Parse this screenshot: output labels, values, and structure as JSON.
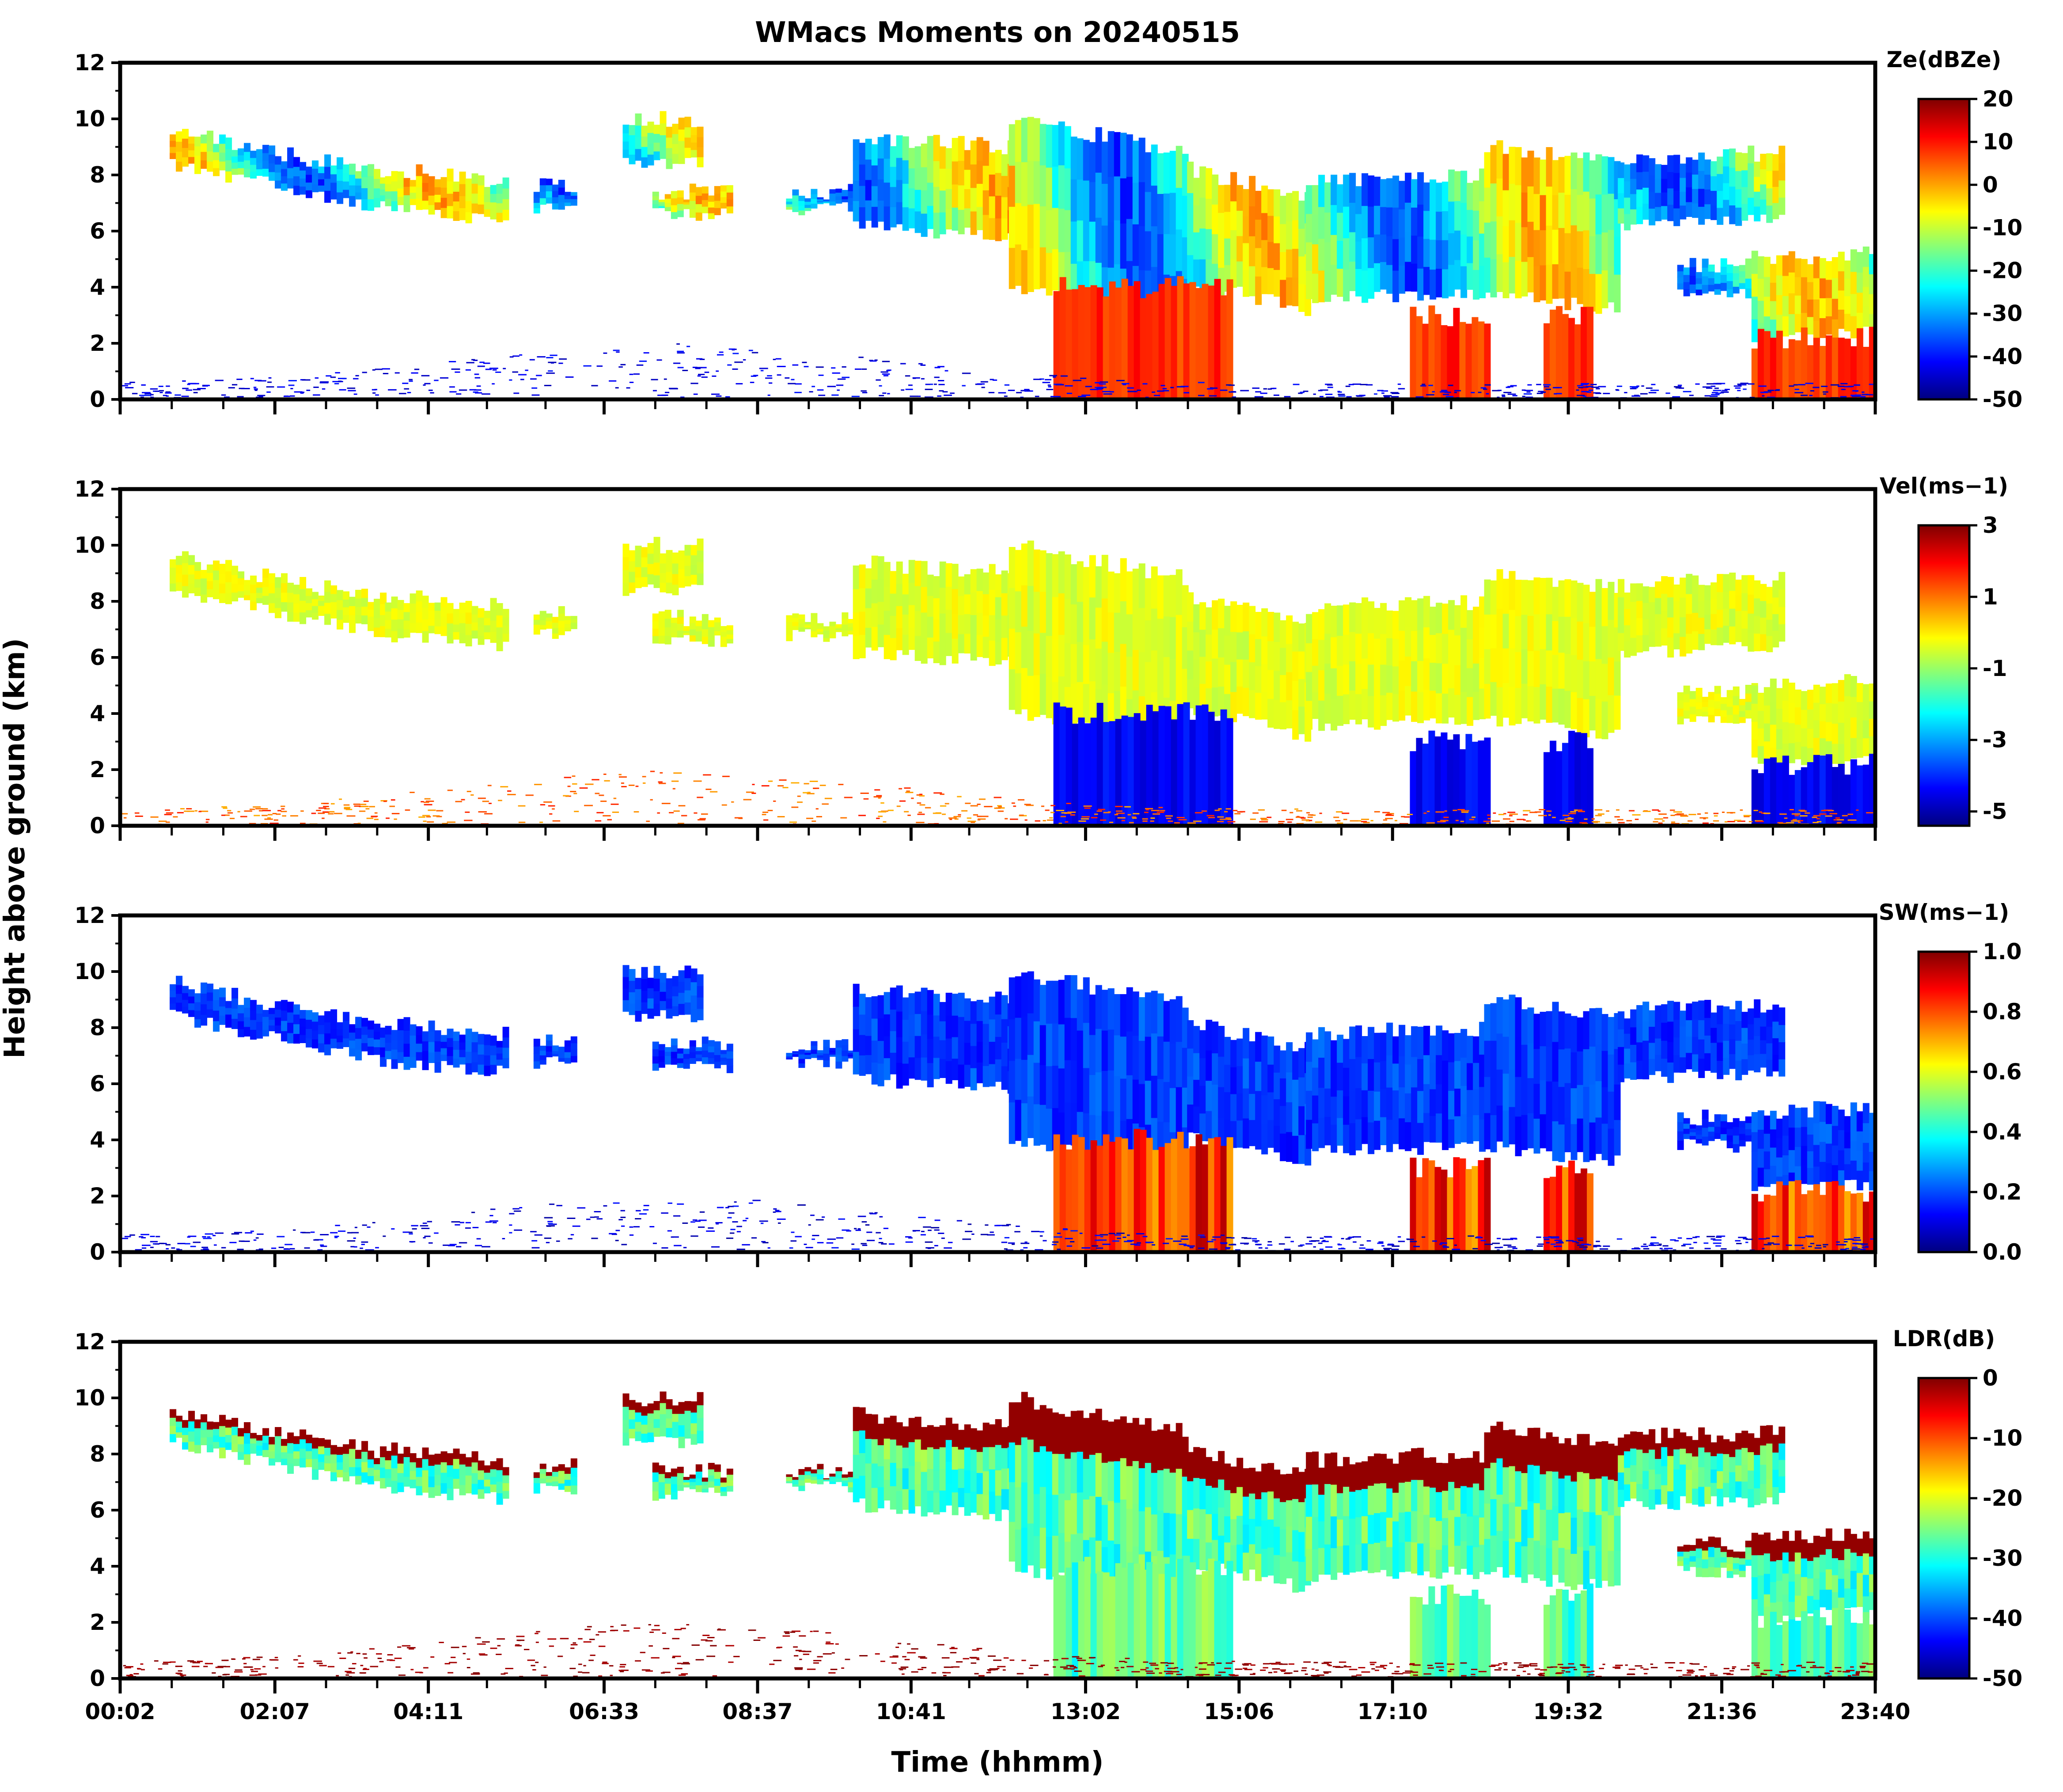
{
  "figure": {
    "title": "WMacs Moments on 20240515",
    "xlabel": "Time (hhmm)",
    "ylabel": "Height above ground (km)"
  },
  "colors": {
    "jet": [
      "#00007f",
      "#0000ff",
      "#007fff",
      "#00ffff",
      "#7fff7f",
      "#ffff00",
      "#ff7f00",
      "#ff0000",
      "#7f0000"
    ],
    "frame": "#000000",
    "background": "#ffffff"
  },
  "chart_data": [
    {
      "type": "heatmap",
      "panel": "Ze",
      "title": "WMacs Moments on 20240515",
      "colorbar_label": "Ze(dBZe)",
      "colorbar_ticks": [
        "20",
        "10",
        "0",
        "-10",
        "-20",
        "-30",
        "-40",
        "-50"
      ],
      "vmin": -50,
      "vmax": 20,
      "ylim": [
        0,
        12
      ],
      "yticks": [
        "0",
        "2",
        "4",
        "6",
        "8",
        "10",
        "12"
      ],
      "xlim": [
        "00:02",
        "23:40"
      ],
      "xticks": []
    },
    {
      "type": "heatmap",
      "panel": "Vel",
      "colorbar_label": "Vel(ms−1)",
      "colorbar_ticks": [
        "3",
        "1",
        "-1",
        "-3",
        "-5"
      ],
      "vmin": -5.4,
      "vmax": 3,
      "ylim": [
        0,
        12
      ],
      "yticks": [
        "0",
        "2",
        "4",
        "6",
        "8",
        "10",
        "12"
      ],
      "xlim": [
        "00:02",
        "23:40"
      ],
      "xticks": []
    },
    {
      "type": "heatmap",
      "panel": "SW",
      "colorbar_label": "SW(ms−1)",
      "colorbar_ticks": [
        "1.0",
        "0.8",
        "0.6",
        "0.4",
        "0.2",
        "0.0"
      ],
      "vmin": 0,
      "vmax": 1,
      "ylim": [
        0,
        12
      ],
      "yticks": [
        "0",
        "2",
        "4",
        "6",
        "8",
        "10",
        "12"
      ],
      "xlim": [
        "00:02",
        "23:40"
      ],
      "xticks": []
    },
    {
      "type": "heatmap",
      "panel": "LDR",
      "colorbar_label": "LDR(dB)",
      "colorbar_ticks": [
        "0",
        "-10",
        "-20",
        "-30",
        "-40",
        "-50"
      ],
      "vmin": -50,
      "vmax": 0,
      "ylim": [
        0,
        12
      ],
      "yticks": [
        "0",
        "2",
        "4",
        "6",
        "8",
        "10",
        "12"
      ],
      "xlim": [
        "00:02",
        "23:40"
      ],
      "xticks": [
        "00:02",
        "02:07",
        "04:11",
        "06:33",
        "08:37",
        "10:41",
        "13:02",
        "15:06",
        "17:10",
        "19:32",
        "21:36",
        "23:40"
      ]
    }
  ]
}
